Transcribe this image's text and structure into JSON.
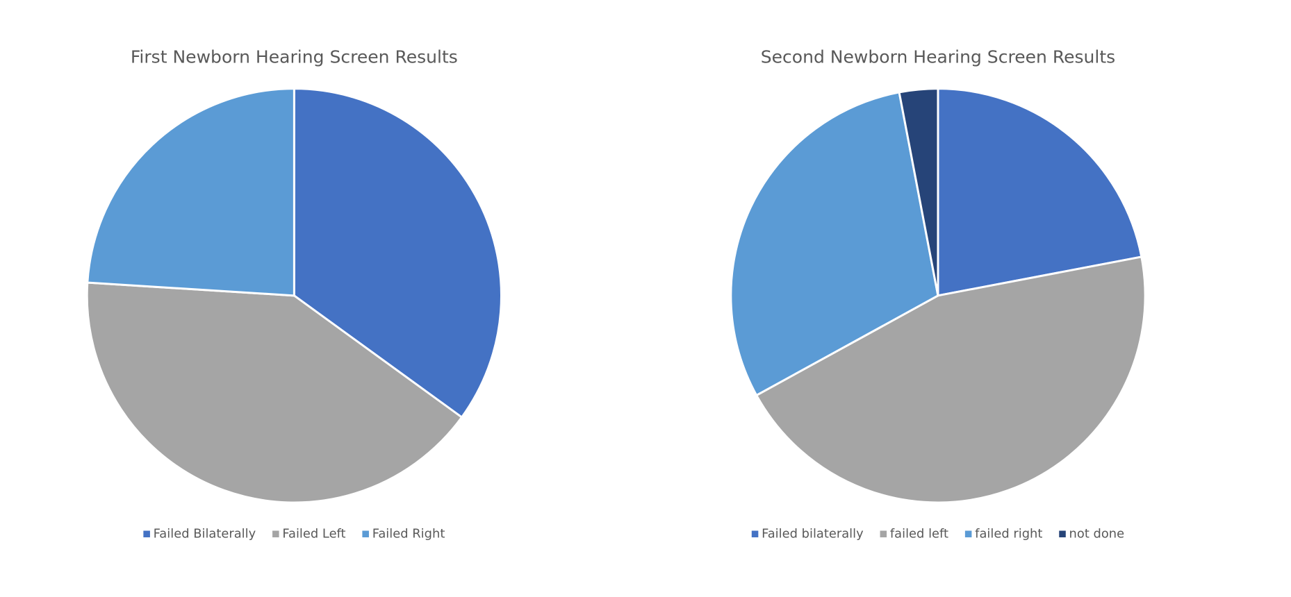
{
  "chart_data": [
    {
      "type": "pie",
      "title": "First Newborn Hearing Screen Results",
      "categories": [
        "Failed Bilaterally",
        "Failed Left",
        "Failed Right"
      ],
      "values": [
        35,
        41,
        24
      ],
      "colors": [
        "#4472c4",
        "#a5a5a5",
        "#5b9bd5"
      ],
      "legend": "bottom"
    },
    {
      "type": "pie",
      "title": "Second Newborn Hearing Screen Results",
      "categories": [
        "Failed bilaterally",
        "failed left",
        "failed right",
        "not done"
      ],
      "values": [
        22,
        45,
        30,
        3
      ],
      "colors": [
        "#4472c4",
        "#a5a5a5",
        "#5b9bd5",
        "#264478"
      ],
      "legend": "bottom"
    }
  ]
}
